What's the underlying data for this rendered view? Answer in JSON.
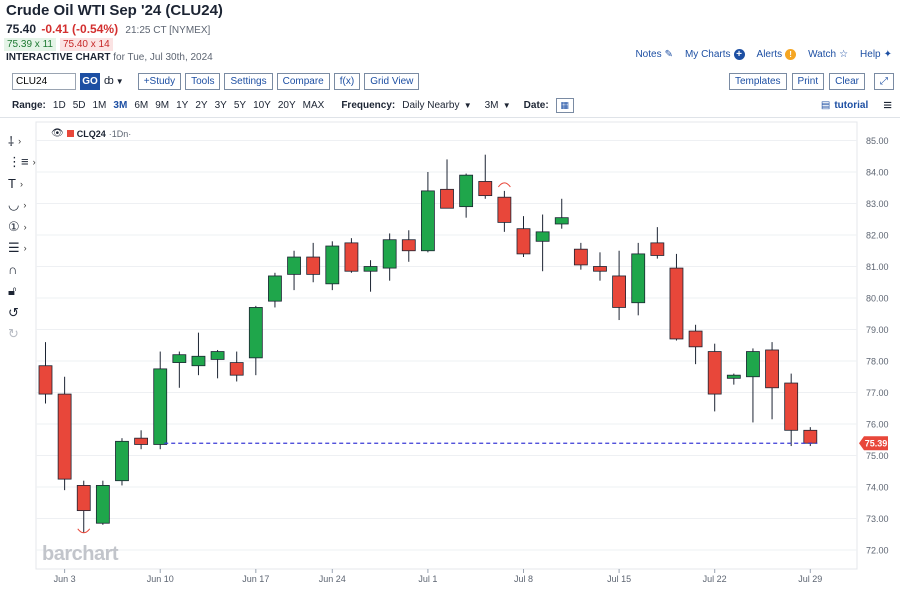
{
  "header": {
    "title": "Crude Oil WTI Sep '24 (CLU24)",
    "last": "75.40",
    "change": "-0.41 (-0.54%)",
    "meta": "21:25 CT [NYMEX]",
    "bid": "75.39 x 11",
    "ask": "75.40 x 14",
    "chart_label": "INTERACTIVE CHART",
    "chart_for": "for Tue, Jul 30th, 2024"
  },
  "links": {
    "notes": "Notes",
    "mycharts": "My Charts",
    "alerts": "Alerts",
    "watch": "Watch",
    "help": "Help"
  },
  "toolbar": {
    "symbol": "CLU24",
    "go": "GO",
    "study": "+Study",
    "tools": "Tools",
    "settings": "Settings",
    "compare": "Compare",
    "fx": "f(x)",
    "gridview": "Grid View",
    "templates": "Templates",
    "print": "Print",
    "clear": "Clear"
  },
  "range": {
    "label": "Range:",
    "options": [
      "1D",
      "5D",
      "1M",
      "3M",
      "6M",
      "9M",
      "1Y",
      "2Y",
      "3Y",
      "5Y",
      "10Y",
      "20Y",
      "MAX"
    ],
    "selected": "3M",
    "frequency_label": "Frequency:",
    "frequency": "Daily Nearby",
    "period": "3M",
    "date_label": "Date:",
    "tutorial": "tutorial"
  },
  "legend": {
    "symbol": "CLQ24",
    "interval": "·1Dn·"
  },
  "watermark": "barchart",
  "colors": {
    "up": "#1fa64b",
    "down": "#e8473a",
    "wick": "#1c2433",
    "last_line": "#3b3bd6",
    "last_tag": "#e8473a"
  },
  "chart_data": {
    "type": "candlestick",
    "ylim": [
      71.5,
      85.5
    ],
    "y_ticks": [
      72.0,
      73.0,
      74.0,
      75.0,
      76.0,
      77.0,
      78.0,
      79.0,
      80.0,
      81.0,
      82.0,
      83.0,
      84.0,
      85.0
    ],
    "x_tick_labels": [
      {
        "label": "Jun 3",
        "index": 1
      },
      {
        "label": "Jun 10",
        "index": 6
      },
      {
        "label": "Jun 17",
        "index": 11
      },
      {
        "label": "Jun 24",
        "index": 15
      },
      {
        "label": "Jul 1",
        "index": 20
      },
      {
        "label": "Jul 8",
        "index": 25
      },
      {
        "label": "Jul 15",
        "index": 30
      },
      {
        "label": "Jul 22",
        "index": 35
      },
      {
        "label": "Jul 29",
        "index": 40
      }
    ],
    "last_price": 75.39,
    "last_label": "75.39",
    "high_marker_index": 24,
    "low_marker_index": 3,
    "candles": [
      {
        "o": 77.85,
        "h": 78.6,
        "l": 76.65,
        "c": 76.95
      },
      {
        "o": 76.95,
        "h": 77.5,
        "l": 73.9,
        "c": 74.25
      },
      {
        "o": 74.05,
        "h": 74.2,
        "l": 72.55,
        "c": 73.25
      },
      {
        "o": 72.85,
        "h": 74.2,
        "l": 72.8,
        "c": 74.05
      },
      {
        "o": 74.2,
        "h": 75.55,
        "l": 74.05,
        "c": 75.45
      },
      {
        "o": 75.55,
        "h": 75.8,
        "l": 75.2,
        "c": 75.35
      },
      {
        "o": 75.35,
        "h": 78.3,
        "l": 75.2,
        "c": 77.75
      },
      {
        "o": 77.95,
        "h": 78.3,
        "l": 77.15,
        "c": 78.2
      },
      {
        "o": 77.85,
        "h": 78.9,
        "l": 77.55,
        "c": 78.15
      },
      {
        "o": 78.05,
        "h": 78.35,
        "l": 77.45,
        "c": 78.3
      },
      {
        "o": 77.95,
        "h": 78.3,
        "l": 77.35,
        "c": 77.55
      },
      {
        "o": 78.1,
        "h": 79.75,
        "l": 77.55,
        "c": 79.7
      },
      {
        "o": 79.9,
        "h": 80.8,
        "l": 79.7,
        "c": 80.7
      },
      {
        "o": 80.75,
        "h": 81.5,
        "l": 80.25,
        "c": 81.3
      },
      {
        "o": 81.3,
        "h": 81.75,
        "l": 80.5,
        "c": 80.75
      },
      {
        "o": 80.45,
        "h": 81.8,
        "l": 80.25,
        "c": 81.65
      },
      {
        "o": 81.75,
        "h": 81.9,
        "l": 80.8,
        "c": 80.85
      },
      {
        "o": 80.85,
        "h": 81.2,
        "l": 80.2,
        "c": 81.0
      },
      {
        "o": 80.95,
        "h": 82.05,
        "l": 80.55,
        "c": 81.85
      },
      {
        "o": 81.85,
        "h": 82.15,
        "l": 81.15,
        "c": 81.5
      },
      {
        "o": 81.5,
        "h": 84.0,
        "l": 81.45,
        "c": 83.4
      },
      {
        "o": 83.45,
        "h": 84.4,
        "l": 82.9,
        "c": 82.85
      },
      {
        "o": 82.9,
        "h": 83.95,
        "l": 82.55,
        "c": 83.9
      },
      {
        "o": 83.7,
        "h": 84.55,
        "l": 83.15,
        "c": 83.25
      },
      {
        "o": 83.2,
        "h": 83.4,
        "l": 82.1,
        "c": 82.4
      },
      {
        "o": 82.2,
        "h": 82.6,
        "l": 81.3,
        "c": 81.4
      },
      {
        "o": 81.8,
        "h": 82.65,
        "l": 80.85,
        "c": 82.1
      },
      {
        "o": 82.35,
        "h": 83.15,
        "l": 82.2,
        "c": 82.55
      },
      {
        "o": 81.55,
        "h": 81.75,
        "l": 80.9,
        "c": 81.05
      },
      {
        "o": 81.0,
        "h": 81.45,
        "l": 80.55,
        "c": 80.85
      },
      {
        "o": 80.7,
        "h": 81.5,
        "l": 79.3,
        "c": 79.7
      },
      {
        "o": 79.85,
        "h": 81.75,
        "l": 79.45,
        "c": 81.4
      },
      {
        "o": 81.75,
        "h": 82.25,
        "l": 81.25,
        "c": 81.35
      },
      {
        "o": 80.95,
        "h": 81.4,
        "l": 78.65,
        "c": 78.7
      },
      {
        "o": 78.95,
        "h": 79.15,
        "l": 77.9,
        "c": 78.45
      },
      {
        "o": 78.3,
        "h": 78.55,
        "l": 76.4,
        "c": 76.95
      },
      {
        "o": 77.45,
        "h": 77.6,
        "l": 77.25,
        "c": 77.55
      },
      {
        "o": 77.5,
        "h": 78.4,
        "l": 76.05,
        "c": 78.3
      },
      {
        "o": 78.35,
        "h": 78.6,
        "l": 76.15,
        "c": 77.15
      },
      {
        "o": 77.3,
        "h": 77.6,
        "l": 75.3,
        "c": 75.8
      },
      {
        "o": 75.8,
        "h": 75.9,
        "l": 75.3,
        "c": 75.39
      }
    ]
  }
}
